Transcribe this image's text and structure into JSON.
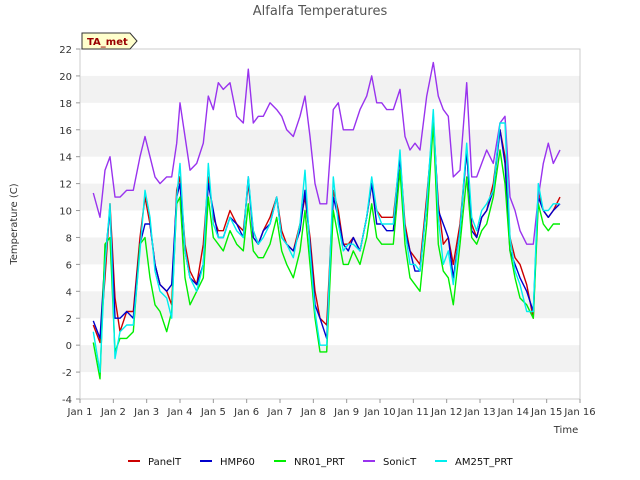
{
  "chart_data": {
    "type": "line",
    "title": "Alfalfa Temperatures",
    "xlabel": "Time",
    "ylabel": "Temperature (C)",
    "xlim": [
      1,
      16
    ],
    "ylim": [
      -4,
      22
    ],
    "x_ticks": [
      {
        "value": 1,
        "label": "Jan 1"
      },
      {
        "value": 2,
        "label": "Jan 2"
      },
      {
        "value": 3,
        "label": "Jan 3"
      },
      {
        "value": 4,
        "label": "Jan 4"
      },
      {
        "value": 5,
        "label": "Jan 5"
      },
      {
        "value": 6,
        "label": "Jan 6"
      },
      {
        "value": 7,
        "label": "Jan 7"
      },
      {
        "value": 8,
        "label": "Jan 8"
      },
      {
        "value": 9,
        "label": "Jan 9"
      },
      {
        "value": 10,
        "label": "Jan 10"
      },
      {
        "value": 11,
        "label": "Jan 11"
      },
      {
        "value": 12,
        "label": "Jan 12"
      },
      {
        "value": 13,
        "label": "Jan 13"
      },
      {
        "value": 14,
        "label": "Jan 14"
      },
      {
        "value": 15,
        "label": "Jan 15"
      },
      {
        "value": 16,
        "label": "Jan 16"
      }
    ],
    "y_ticks": [
      -4,
      -2,
      0,
      2,
      4,
      6,
      8,
      10,
      12,
      14,
      16,
      18,
      20,
      22
    ],
    "grid": "horizontal bands",
    "legend_position": "bottom",
    "annotation": "TA_met",
    "series": [
      {
        "name": "PanelT",
        "color": "#cc0000",
        "x": [
          1.4,
          1.6,
          1.75,
          1.9,
          2.05,
          2.2,
          2.4,
          2.6,
          2.8,
          2.95,
          3.1,
          3.25,
          3.4,
          3.6,
          3.75,
          3.9,
          4.0,
          4.15,
          4.3,
          4.5,
          4.7,
          4.85,
          5.0,
          5.15,
          5.3,
          5.5,
          5.7,
          5.9,
          6.05,
          6.2,
          6.35,
          6.5,
          6.7,
          6.9,
          7.05,
          7.2,
          7.4,
          7.6,
          7.75,
          7.9,
          8.05,
          8.2,
          8.4,
          8.6,
          8.75,
          8.9,
          9.05,
          9.2,
          9.4,
          9.6,
          9.75,
          9.9,
          10.05,
          10.2,
          10.4,
          10.6,
          10.75,
          10.9,
          11.05,
          11.2,
          11.4,
          11.6,
          11.75,
          11.9,
          12.05,
          12.2,
          12.4,
          12.6,
          12.75,
          12.9,
          13.05,
          13.2,
          13.4,
          13.6,
          13.75,
          13.9,
          14.05,
          14.2,
          14.4,
          14.6,
          14.75,
          14.9,
          15.05,
          15.2,
          15.4
        ],
        "y": [
          1.5,
          0.2,
          5.0,
          10.5,
          3.5,
          1.0,
          2.5,
          2.5,
          8.0,
          11.0,
          9.0,
          6.0,
          4.5,
          4.0,
          3.0,
          11.5,
          12.5,
          7.5,
          5.5,
          4.5,
          7.5,
          12.5,
          9.5,
          8.5,
          8.5,
          10.0,
          9.0,
          8.5,
          12.0,
          8.5,
          7.5,
          8.5,
          9.5,
          11.0,
          8.5,
          7.5,
          7.0,
          9.0,
          11.0,
          8.0,
          4.0,
          2.0,
          1.5,
          11.5,
          10.0,
          7.5,
          7.5,
          8.0,
          7.0,
          9.5,
          12.0,
          10.0,
          9.5,
          9.5,
          9.5,
          14.0,
          9.0,
          7.0,
          6.5,
          6.0,
          11.0,
          16.5,
          10.5,
          7.5,
          8.0,
          6.0,
          9.0,
          14.5,
          9.0,
          8.0,
          9.5,
          10.0,
          12.0,
          16.0,
          14.0,
          8.0,
          6.5,
          6.0,
          4.5,
          2.0,
          11.5,
          10.0,
          9.5,
          10.0,
          11.0
        ]
      },
      {
        "name": "HMP60",
        "color": "#0000cc",
        "x": [
          1.4,
          1.6,
          1.75,
          1.9,
          2.05,
          2.2,
          2.4,
          2.6,
          2.8,
          2.95,
          3.1,
          3.25,
          3.4,
          3.6,
          3.75,
          3.9,
          4.0,
          4.15,
          4.3,
          4.5,
          4.7,
          4.85,
          5.0,
          5.15,
          5.3,
          5.5,
          5.7,
          5.9,
          6.05,
          6.2,
          6.35,
          6.5,
          6.7,
          6.9,
          7.05,
          7.2,
          7.4,
          7.6,
          7.75,
          7.9,
          8.05,
          8.2,
          8.4,
          8.6,
          8.75,
          8.9,
          9.05,
          9.2,
          9.4,
          9.6,
          9.75,
          9.9,
          10.05,
          10.2,
          10.4,
          10.6,
          10.75,
          10.9,
          11.05,
          11.2,
          11.4,
          11.6,
          11.75,
          11.9,
          12.05,
          12.2,
          12.4,
          12.6,
          12.75,
          12.9,
          13.05,
          13.2,
          13.4,
          13.6,
          13.75,
          13.9,
          14.05,
          14.2,
          14.4,
          14.6,
          14.75,
          14.9,
          15.05,
          15.2,
          15.4
        ],
        "y": [
          1.8,
          0.5,
          6.5,
          10.0,
          2.0,
          2.0,
          2.5,
          2.0,
          7.5,
          9.0,
          9.0,
          6.0,
          4.5,
          4.0,
          4.5,
          11.0,
          12.0,
          7.0,
          5.0,
          4.5,
          6.0,
          12.0,
          10.0,
          8.0,
          8.0,
          9.5,
          9.0,
          8.0,
          12.5,
          8.0,
          7.5,
          8.5,
          9.0,
          11.0,
          8.0,
          7.5,
          7.0,
          8.5,
          11.5,
          7.5,
          3.0,
          2.0,
          0.5,
          11.0,
          9.5,
          7.5,
          7.0,
          8.0,
          7.0,
          9.5,
          12.0,
          9.0,
          9.0,
          8.5,
          8.5,
          14.0,
          8.5,
          7.0,
          5.5,
          5.5,
          10.5,
          17.0,
          10.0,
          9.0,
          8.0,
          5.0,
          8.5,
          14.5,
          8.5,
          8.0,
          9.5,
          10.0,
          11.5,
          16.0,
          13.5,
          7.0,
          6.0,
          5.0,
          4.0,
          2.5,
          11.0,
          10.0,
          9.5,
          10.0,
          10.5
        ]
      },
      {
        "name": "NR01_PRT",
        "color": "#00ee00",
        "x": [
          1.4,
          1.6,
          1.75,
          1.9,
          2.05,
          2.2,
          2.4,
          2.6,
          2.8,
          2.95,
          3.1,
          3.25,
          3.4,
          3.6,
          3.75,
          3.9,
          4.0,
          4.15,
          4.3,
          4.5,
          4.7,
          4.85,
          5.0,
          5.15,
          5.3,
          5.5,
          5.7,
          5.9,
          6.05,
          6.2,
          6.35,
          6.5,
          6.7,
          6.9,
          7.05,
          7.2,
          7.4,
          7.6,
          7.75,
          7.9,
          8.05,
          8.2,
          8.4,
          8.6,
          8.75,
          8.9,
          9.05,
          9.2,
          9.4,
          9.6,
          9.75,
          9.9,
          10.05,
          10.2,
          10.4,
          10.6,
          10.75,
          10.9,
          11.05,
          11.2,
          11.4,
          11.6,
          11.75,
          11.9,
          12.05,
          12.2,
          12.4,
          12.6,
          12.75,
          12.9,
          13.05,
          13.2,
          13.4,
          13.6,
          13.75,
          13.9,
          14.05,
          14.2,
          14.4,
          14.6,
          14.75,
          14.9,
          15.05,
          15.2,
          15.4
        ],
        "y": [
          0.2,
          -2.5,
          7.5,
          8.0,
          -0.5,
          0.5,
          0.5,
          1.0,
          7.5,
          8.0,
          5.0,
          3.0,
          2.5,
          1.0,
          2.5,
          10.5,
          11.0,
          5.0,
          3.0,
          4.0,
          5.0,
          11.0,
          8.0,
          7.5,
          7.0,
          8.5,
          7.5,
          7.0,
          10.5,
          7.0,
          6.5,
          6.5,
          7.5,
          9.5,
          7.0,
          6.0,
          5.0,
          7.0,
          10.0,
          6.0,
          2.0,
          -0.5,
          -0.5,
          10.0,
          8.0,
          6.0,
          6.0,
          7.0,
          6.0,
          8.0,
          10.5,
          8.0,
          7.5,
          7.5,
          7.5,
          13.0,
          7.5,
          5.0,
          4.5,
          4.0,
          9.0,
          16.5,
          7.5,
          5.5,
          5.0,
          3.0,
          7.5,
          12.5,
          8.0,
          7.5,
          8.5,
          9.0,
          11.0,
          14.5,
          12.0,
          7.0,
          5.0,
          3.5,
          3.0,
          2.0,
          10.5,
          9.0,
          8.5,
          9.0,
          9.0
        ]
      },
      {
        "name": "SonicT",
        "color": "#9933ee",
        "x": [
          1.4,
          1.6,
          1.75,
          1.9,
          2.05,
          2.2,
          2.4,
          2.6,
          2.8,
          2.95,
          3.1,
          3.25,
          3.4,
          3.6,
          3.75,
          3.9,
          4.0,
          4.15,
          4.3,
          4.5,
          4.7,
          4.85,
          5.0,
          5.15,
          5.3,
          5.5,
          5.7,
          5.9,
          6.05,
          6.2,
          6.35,
          6.5,
          6.7,
          6.9,
          7.05,
          7.2,
          7.4,
          7.6,
          7.75,
          7.9,
          8.05,
          8.2,
          8.4,
          8.6,
          8.75,
          8.9,
          9.05,
          9.2,
          9.4,
          9.6,
          9.75,
          9.9,
          10.05,
          10.2,
          10.4,
          10.6,
          10.75,
          10.9,
          11.05,
          11.2,
          11.4,
          11.6,
          11.75,
          11.9,
          12.05,
          12.2,
          12.4,
          12.6,
          12.75,
          12.9,
          13.05,
          13.2,
          13.4,
          13.6,
          13.75,
          13.9,
          14.05,
          14.2,
          14.4,
          14.6,
          14.75,
          14.9,
          15.05,
          15.2,
          15.4
        ],
        "y": [
          11.3,
          9.5,
          13.0,
          14.0,
          11.0,
          11.0,
          11.5,
          11.5,
          14.0,
          15.5,
          14.0,
          12.5,
          12.0,
          12.5,
          12.5,
          15.0,
          18.0,
          15.5,
          13.0,
          13.5,
          15.0,
          18.5,
          17.5,
          19.5,
          19.0,
          19.5,
          17.0,
          16.5,
          20.5,
          16.5,
          17.0,
          17.0,
          18.0,
          17.5,
          17.0,
          16.0,
          15.5,
          17.0,
          18.5,
          15.5,
          12.0,
          10.5,
          10.5,
          17.5,
          18.0,
          16.0,
          16.0,
          16.0,
          17.5,
          18.5,
          20.0,
          18.0,
          18.0,
          17.5,
          17.5,
          19.0,
          15.5,
          14.5,
          15.0,
          14.5,
          18.5,
          21.0,
          18.5,
          17.5,
          17.0,
          12.5,
          13.0,
          19.5,
          12.5,
          12.5,
          13.5,
          14.5,
          13.5,
          16.5,
          17.0,
          11.0,
          10.0,
          8.5,
          7.5,
          7.5,
          11.0,
          13.5,
          15.0,
          13.5,
          14.5
        ]
      },
      {
        "name": "AM25T_PRT",
        "color": "#00eeee",
        "x": [
          1.4,
          1.6,
          1.75,
          1.9,
          2.05,
          2.2,
          2.4,
          2.6,
          2.8,
          2.95,
          3.1,
          3.25,
          3.4,
          3.6,
          3.75,
          3.9,
          4.0,
          4.15,
          4.3,
          4.5,
          4.7,
          4.85,
          5.0,
          5.15,
          5.3,
          5.5,
          5.7,
          5.9,
          6.05,
          6.2,
          6.35,
          6.5,
          6.7,
          6.9,
          7.05,
          7.2,
          7.4,
          7.6,
          7.75,
          7.9,
          8.05,
          8.2,
          8.4,
          8.6,
          8.75,
          8.9,
          9.05,
          9.2,
          9.4,
          9.6,
          9.75,
          9.9,
          10.05,
          10.2,
          10.4,
          10.6,
          10.75,
          10.9,
          11.05,
          11.2,
          11.4,
          11.6,
          11.75,
          11.9,
          12.05,
          12.2,
          12.4,
          12.6,
          12.75,
          12.9,
          13.05,
          13.2,
          13.4,
          13.6,
          13.75,
          13.9,
          14.05,
          14.2,
          14.4,
          14.6,
          14.75,
          14.9,
          15.05,
          15.2,
          15.4
        ],
        "y": [
          1.0,
          -2.0,
          6.0,
          10.5,
          -1.0,
          1.0,
          1.5,
          1.5,
          7.0,
          11.5,
          9.5,
          5.5,
          4.0,
          3.5,
          2.0,
          11.0,
          13.5,
          7.0,
          5.0,
          4.0,
          6.0,
          13.5,
          9.0,
          8.0,
          8.0,
          9.5,
          8.5,
          8.0,
          12.5,
          8.5,
          7.5,
          8.0,
          9.0,
          11.0,
          8.0,
          7.5,
          6.5,
          9.0,
          13.0,
          7.0,
          2.5,
          0.0,
          0.0,
          12.5,
          9.0,
          7.0,
          7.5,
          7.5,
          7.0,
          9.5,
          12.5,
          10.0,
          9.0,
          9.0,
          9.0,
          14.5,
          8.5,
          6.0,
          6.0,
          5.5,
          10.5,
          17.5,
          9.5,
          6.0,
          7.0,
          4.5,
          8.5,
          15.0,
          9.5,
          8.5,
          10.0,
          10.5,
          11.5,
          16.5,
          16.5,
          8.0,
          5.5,
          4.5,
          2.5,
          2.5,
          12.0,
          10.0,
          10.0,
          10.5,
          10.5
        ]
      }
    ]
  }
}
